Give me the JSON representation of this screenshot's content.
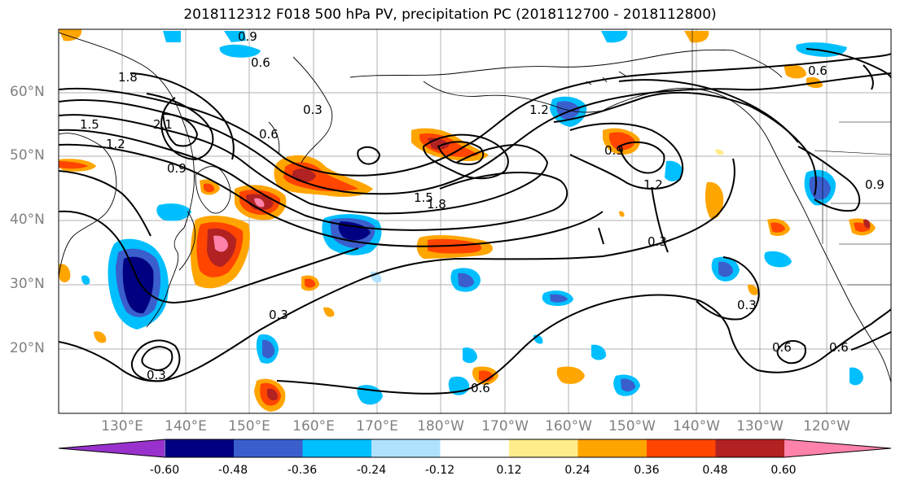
{
  "title": "2018112312 F018 500 hPa PV, precipitation PC (2018112700 - 2018112800)",
  "lat_labels": [
    "60°N",
    "50°N",
    "40°N",
    "30°N",
    "20°N"
  ],
  "lon_labels": [
    "130°E",
    "140°E",
    "150°E",
    "160°E",
    "170°E",
    "180°W",
    "170°W",
    "160°W",
    "150°W",
    "140°W",
    "130°W",
    "120°W"
  ],
  "colorbar": {
    "ticks": [
      "-0.60",
      "-0.48",
      "-0.36",
      "-0.24",
      "-0.12",
      "0.12",
      "0.24",
      "0.36",
      "0.48",
      "0.60"
    ],
    "colors": [
      "#9932cc",
      "#000080",
      "#3a5fcd",
      "#00bfff",
      "#b0e2ff",
      "#ffffff",
      "#ffec8b",
      "#ffa500",
      "#ff4500",
      "#b22222",
      "#ff82ab"
    ]
  },
  "contour_labels": [
    "0.9",
    "0.6",
    "1.8",
    "1.5",
    "1.2",
    "2.1",
    "0.9",
    "0.3",
    "0.6",
    "1.2",
    "1.5",
    "1.8",
    "0.9",
    "1.2",
    "0.3",
    "0.6",
    "0.3",
    "0.6",
    "0.3",
    "0.6",
    "0.3",
    "0.9",
    "0.6"
  ]
}
